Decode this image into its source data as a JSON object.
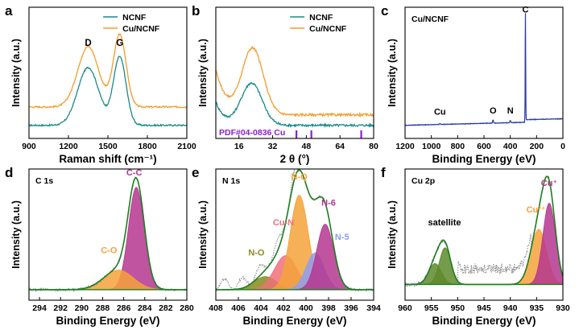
{
  "colors": {
    "ncnf": "#1a8a8a",
    "cu_ncnf": "#f39c2b",
    "survey": "#2b3aa8",
    "ref_bar": "#8a1fd4",
    "envelope": "#1e7d22",
    "raw": "#8c8c8c",
    "cc": "#b5368f",
    "co": "#f5a23a",
    "n6": "#b5368f",
    "n5": "#8f9ef0",
    "nq": "#f5a23a",
    "cun": "#f0707a",
    "no": "#8a8a1e",
    "cu_plus": "#b5368f",
    "cu_2plus": "#f5a23a",
    "satellite": "#5e8a2a"
  },
  "chart_data": [
    {
      "panel": "a",
      "type": "line",
      "xlabel": "Raman shift (cm⁻¹)",
      "ylabel": "Intensity (a.u.)",
      "xlim": [
        900,
        2100
      ],
      "xticks": [
        900,
        1200,
        1500,
        1800,
        2100
      ],
      "legend": [
        "NCNF",
        "Cu/NCNF"
      ],
      "annotations": [
        {
          "text": "D",
          "x": 1350
        },
        {
          "text": "G",
          "x": 1590
        }
      ],
      "series": [
        {
          "name": "NCNF",
          "peaks": [
            {
              "center": 1350,
              "height": 0.44,
              "width": 80
            },
            {
              "center": 1590,
              "height": 0.52,
              "width": 48
            }
          ],
          "baseline": 0.1,
          "noise": 0.012
        },
        {
          "name": "Cu/NCNF",
          "peaks": [
            {
              "center": 1350,
              "height": 0.46,
              "width": 80
            },
            {
              "center": 1590,
              "height": 0.55,
              "width": 48
            }
          ],
          "baseline": 0.24,
          "noise": 0.012
        }
      ]
    },
    {
      "panel": "b",
      "type": "line",
      "xlabel": "2 θ (°)",
      "ylabel": "Intensity (a.u.)",
      "xlim": [
        5,
        80
      ],
      "xticks": [
        16,
        32,
        48,
        64,
        80
      ],
      "legend": [
        "NCNF",
        "Cu/NCNF"
      ],
      "reference": {
        "label": "PDF#04-0836 Cu",
        "positions": [
          43.3,
          50.4,
          74.1
        ]
      },
      "series": [
        {
          "name": "NCNF",
          "peaks": [
            {
              "center": 22,
              "height": 0.32,
              "width": 5
            }
          ],
          "baseline": 0.1,
          "decay": {
            "amp": 0.18,
            "rate": 0.25
          },
          "noise": 0.018
        },
        {
          "name": "Cu/NCNF",
          "peaks": [
            {
              "center": 22.5,
              "height": 0.5,
              "width": 5
            }
          ],
          "baseline": 0.18,
          "decay": {
            "amp": 0.35,
            "rate": 0.2
          },
          "noise": 0.018
        }
      ]
    },
    {
      "panel": "c",
      "type": "line",
      "xlabel": "Binding Energy (eV)",
      "ylabel": "Intensity (a.u.)",
      "xlim": [
        1200,
        0
      ],
      "xticks": [
        1200,
        1000,
        800,
        600,
        400,
        200,
        0
      ],
      "inset_label": "Cu/NCNF",
      "annotations": [
        {
          "text": "Cu",
          "x": 935
        },
        {
          "text": "O",
          "x": 531
        },
        {
          "text": "N",
          "x": 400
        },
        {
          "text": "C",
          "x": 284.8
        }
      ],
      "series": [
        {
          "name": "Cu/NCNF",
          "peaks": [
            {
              "center": 284.8,
              "height": 0.82,
              "width": 1.8
            },
            {
              "center": 531,
              "height": 0.025,
              "width": 3
            },
            {
              "center": 400,
              "height": 0.018,
              "width": 3
            },
            {
              "center": 935,
              "height": 0.006,
              "width": 4
            }
          ],
          "baseline": 0.1,
          "noise": 0.003
        }
      ]
    },
    {
      "panel": "d",
      "type": "line",
      "xlabel": "Binding Energy (eV)",
      "ylabel": "Intensity (a.u.)",
      "xlim": [
        295,
        280
      ],
      "xticks": [
        294,
        292,
        290,
        288,
        286,
        284,
        282,
        280
      ],
      "inset_label": "C 1s",
      "components": [
        {
          "name": "C-C",
          "center": 284.8,
          "height": 0.78,
          "width": 0.75
        },
        {
          "name": "C-O",
          "center": 286.5,
          "height": 0.15,
          "width": 1.4
        }
      ]
    },
    {
      "panel": "e",
      "type": "line",
      "xlabel": "Binding Energy (eV)",
      "ylabel": "Intensity (a.u.)",
      "xlim": [
        408,
        394
      ],
      "xticks": [
        408,
        406,
        404,
        402,
        400,
        398,
        396,
        394
      ],
      "inset_label": "N 1s",
      "components": [
        {
          "name": "N-O",
          "center": 403.6,
          "height": 0.1,
          "width": 1.0
        },
        {
          "name": "Cu-N",
          "center": 401.8,
          "height": 0.26,
          "width": 1.0
        },
        {
          "name": "N-Q",
          "center": 400.6,
          "height": 0.72,
          "width": 0.8
        },
        {
          "name": "N-5",
          "center": 399.2,
          "height": 0.28,
          "width": 0.8
        },
        {
          "name": "N-6",
          "center": 398.3,
          "height": 0.5,
          "width": 0.75
        }
      ]
    },
    {
      "panel": "f",
      "type": "line",
      "xlabel": "Binding Energy (eV)",
      "ylabel": "Intensity (a.u.)",
      "xlim": [
        960,
        930
      ],
      "xticks": [
        960,
        955,
        950,
        945,
        940,
        935,
        930
      ],
      "inset_label": "Cu 2p",
      "components": [
        {
          "name": "satellite",
          "center": 954.3,
          "height": 0.16,
          "width": 1.2
        },
        {
          "name": "satellite",
          "center": 952.4,
          "height": 0.28,
          "width": 1.1
        },
        {
          "name": "Cu²⁺",
          "center": 934.6,
          "height": 0.42,
          "width": 1.5
        },
        {
          "name": "Cu⁺",
          "center": 932.6,
          "height": 0.62,
          "width": 1.2
        }
      ]
    }
  ]
}
